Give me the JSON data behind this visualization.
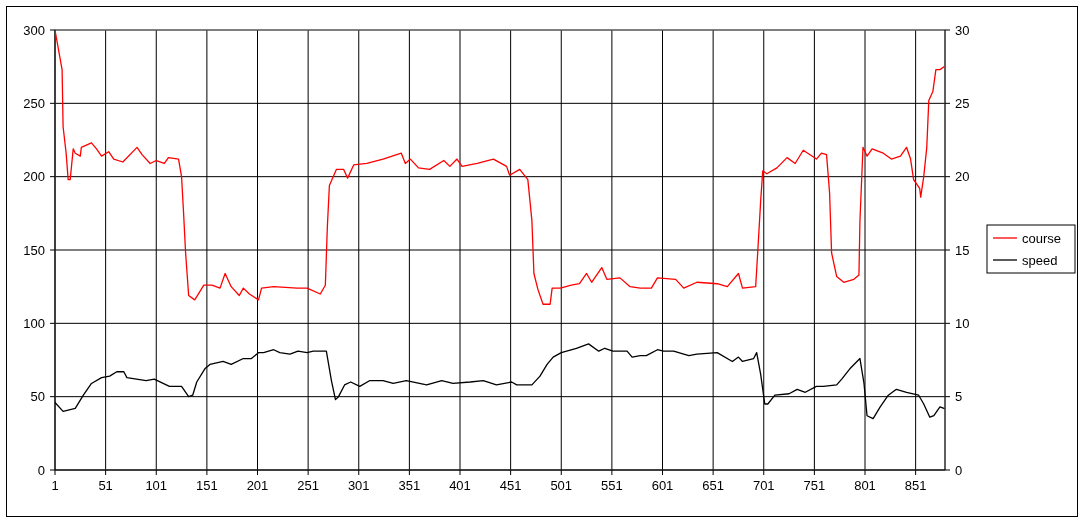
{
  "chart_data": {
    "type": "line",
    "xlim": [
      1,
      880
    ],
    "xticks": [
      1,
      51,
      101,
      151,
      201,
      251,
      301,
      351,
      401,
      451,
      501,
      551,
      601,
      651,
      701,
      751,
      801,
      851
    ],
    "ylim": [
      0,
      300
    ],
    "yticks": [
      0,
      50,
      100,
      150,
      200,
      250,
      300
    ],
    "y2lim": [
      0,
      30
    ],
    "y2ticks": [
      0,
      5,
      10,
      15,
      20,
      25,
      30
    ],
    "grid": true,
    "legend": "right",
    "marker": "none",
    "line_style": "solid",
    "series": [
      {
        "name": "course",
        "color": "#ff0000",
        "x": [
          1,
          8,
          9,
          12,
          14,
          16,
          19,
          21,
          26,
          27,
          37,
          42,
          47,
          54,
          59,
          68,
          82,
          87,
          95,
          101,
          109,
          113,
          123,
          126,
          128,
          130,
          133,
          139,
          148,
          156,
          164,
          169,
          175,
          183,
          187,
          193,
          202,
          205,
          217,
          240,
          250,
          263,
          268,
          270,
          272,
          279,
          286,
          290,
          296,
          309,
          325,
          343,
          347,
          352,
          360,
          371,
          385,
          391,
          398,
          403,
          418,
          434,
          447,
          450,
          460,
          468,
          472,
          474,
          478,
          483,
          490,
          492,
          500,
          511,
          519,
          526,
          531,
          541,
          546,
          559,
          569,
          579,
          590,
          596,
          614,
          622,
          635,
          655,
          665,
          676,
          680,
          693,
          695,
          698,
          700,
          704,
          714,
          724,
          732,
          740,
          753,
          758,
          763,
          766,
          768,
          773,
          780,
          790,
          795,
          796,
          799,
          803,
          808,
          819,
          827,
          836,
          842,
          846,
          849,
          855,
          856,
          859,
          862,
          864,
          868,
          871,
          875,
          879
        ],
        "values": [
          300,
          273,
          234,
          216,
          198,
          198,
          219,
          216,
          214,
          220,
          223,
          219,
          214,
          217,
          212,
          210,
          220,
          215,
          209,
          211,
          209,
          213,
          212,
          200,
          175,
          148,
          119,
          116,
          126,
          126,
          124,
          134,
          125,
          119,
          124,
          120,
          116,
          124,
          125,
          124,
          124,
          120,
          126,
          166,
          194,
          205,
          205,
          199,
          208,
          209,
          212,
          216,
          209,
          212,
          206,
          205,
          211,
          207,
          212,
          207,
          209,
          212,
          207,
          201,
          205,
          198,
          170,
          134,
          123,
          113,
          113,
          124,
          124,
          126,
          127,
          134,
          128,
          138,
          130,
          131,
          125,
          124,
          124,
          131,
          130,
          124,
          128,
          127,
          125,
          134,
          124,
          125,
          148,
          184,
          204,
          202,
          206,
          213,
          209,
          218,
          212,
          216,
          215,
          189,
          148,
          132,
          128,
          130,
          133,
          170,
          220,
          214,
          219,
          216,
          212,
          214,
          220,
          212,
          198,
          192,
          186,
          200,
          220,
          252,
          258,
          273,
          273,
          275
        ]
      },
      {
        "name": "speed",
        "color": "#000000",
        "axis": "y2",
        "x": [
          1,
          9,
          21,
          29,
          37,
          47,
          55,
          62,
          69,
          72,
          91,
          99,
          114,
          126,
          133,
          137,
          141,
          149,
          154,
          167,
          175,
          187,
          195,
          202,
          207,
          217,
          223,
          233,
          241,
          250,
          256,
          269,
          274,
          278,
          281,
          287,
          293,
          302,
          312,
          325,
          335,
          348,
          368,
          383,
          394,
          411,
          424,
          437,
          452,
          457,
          472,
          480,
          487,
          493,
          501,
          516,
          528,
          538,
          544,
          552,
          566,
          571,
          579,
          585,
          596,
          602,
          612,
          627,
          635,
          655,
          670,
          676,
          680,
          691,
          694,
          698,
          702,
          705,
          712,
          726,
          734,
          742,
          753,
          760,
          773,
          778,
          786,
          796,
          800,
          803,
          809,
          816,
          824,
          832,
          842,
          854,
          859,
          865,
          869,
          875,
          879
        ],
        "values": [
          4.6,
          4.0,
          4.2,
          5.1,
          5.9,
          6.3,
          6.4,
          6.7,
          6.7,
          6.3,
          6.1,
          6.2,
          5.7,
          5.7,
          5.0,
          5.1,
          6.0,
          6.9,
          7.2,
          7.4,
          7.2,
          7.6,
          7.6,
          8.0,
          8.0,
          8.2,
          8.0,
          7.9,
          8.1,
          8.0,
          8.1,
          8.1,
          6.1,
          4.8,
          5.0,
          5.8,
          6.0,
          5.7,
          6.1,
          6.1,
          5.9,
          6.1,
          5.8,
          6.1,
          5.9,
          6.0,
          6.1,
          5.8,
          6.0,
          5.8,
          5.8,
          6.4,
          7.2,
          7.7,
          8.0,
          8.3,
          8.6,
          8.1,
          8.3,
          8.1,
          8.1,
          7.7,
          7.8,
          7.8,
          8.2,
          8.1,
          8.1,
          7.8,
          7.9,
          8.0,
          7.4,
          7.7,
          7.4,
          7.6,
          8.0,
          6.5,
          4.5,
          4.5,
          5.1,
          5.2,
          5.5,
          5.3,
          5.7,
          5.7,
          5.8,
          6.2,
          6.9,
          7.6,
          5.9,
          3.7,
          3.5,
          4.3,
          5.1,
          5.5,
          5.3,
          5.1,
          4.5,
          3.6,
          3.7,
          4.3,
          4.2
        ]
      }
    ]
  }
}
